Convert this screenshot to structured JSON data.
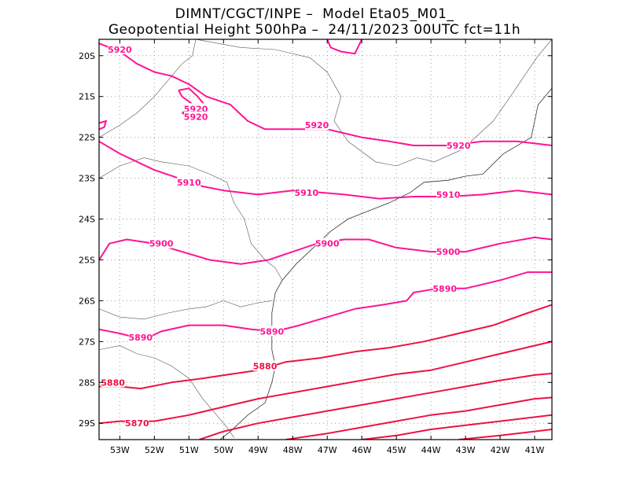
{
  "header": {
    "line1": "DIMNT/CGCT/INPE –  Model Eta05_M01_",
    "line2": "Geopotential Height 500hPa –  24/11/2023 00UTC fct=11h"
  },
  "map": {
    "lon_range": [
      -53.6,
      -40.5
    ],
    "lat_range": [
      -29.4,
      -19.6
    ],
    "x_ticks": [
      "53W",
      "52W",
      "51W",
      "50W",
      "49W",
      "48W",
      "47W",
      "46W",
      "45W",
      "44W",
      "43W",
      "42W",
      "41W"
    ],
    "x_tick_values": [
      -53,
      -52,
      -51,
      -50,
      -49,
      -48,
      -47,
      -46,
      -45,
      -44,
      -43,
      -42,
      -41
    ],
    "y_ticks": [
      "20S",
      "21S",
      "22S",
      "23S",
      "24S",
      "25S",
      "26S",
      "27S",
      "28S",
      "29S"
    ],
    "y_tick_values": [
      -20,
      -21,
      -22,
      -23,
      -24,
      -25,
      -26,
      -27,
      -28,
      -29
    ],
    "contour_color_high": "#ff1493",
    "contour_color_low": "#ee1144",
    "grid": "dotted"
  },
  "contours": [
    {
      "label": "5920",
      "label_positions": [
        [
          -53.0,
          -19.85
        ],
        [
          -50.8,
          -21.3
        ],
        [
          -50.8,
          -21.5
        ],
        [
          -47.3,
          -21.7
        ],
        [
          -43.2,
          -22.2
        ]
      ],
      "points": [
        [
          -53.6,
          -19.7
        ],
        [
          -53.0,
          -19.9
        ],
        [
          -52.5,
          -20.2
        ],
        [
          -52.0,
          -20.4
        ],
        [
          -51.5,
          -20.5
        ],
        [
          -51.0,
          -20.7
        ],
        [
          -50.5,
          -21.0
        ],
        [
          -49.8,
          -21.2
        ],
        [
          -49.3,
          -21.6
        ],
        [
          -48.8,
          -21.8
        ],
        [
          -48.0,
          -21.8
        ],
        [
          -47.5,
          -21.8
        ],
        [
          -47.0,
          -21.8
        ],
        [
          -46.5,
          -21.9
        ],
        [
          -46.0,
          -22.0
        ],
        [
          -45.2,
          -22.1
        ],
        [
          -44.5,
          -22.2
        ],
        [
          -43.5,
          -22.2
        ],
        [
          -42.5,
          -22.1
        ],
        [
          -41.5,
          -22.1
        ],
        [
          -40.5,
          -22.2
        ]
      ]
    },
    {
      "label": "5910",
      "label_positions": [
        [
          -51.0,
          -23.1
        ],
        [
          -47.6,
          -23.35
        ],
        [
          -43.5,
          -23.4
        ]
      ],
      "points": [
        [
          -53.6,
          -22.1
        ],
        [
          -53.0,
          -22.4
        ],
        [
          -52.5,
          -22.6
        ],
        [
          -52.0,
          -22.8
        ],
        [
          -51.3,
          -23.0
        ],
        [
          -50.6,
          -23.2
        ],
        [
          -50.0,
          -23.3
        ],
        [
          -49.0,
          -23.4
        ],
        [
          -48.0,
          -23.3
        ],
        [
          -47.2,
          -23.35
        ],
        [
          -46.5,
          -23.4
        ],
        [
          -45.5,
          -23.5
        ],
        [
          -44.5,
          -23.45
        ],
        [
          -43.5,
          -23.45
        ],
        [
          -42.5,
          -23.4
        ],
        [
          -41.5,
          -23.3
        ],
        [
          -40.5,
          -23.4
        ]
      ]
    },
    {
      "label": "5900",
      "label_positions": [
        [
          -51.8,
          -24.6
        ],
        [
          -47.0,
          -24.6
        ],
        [
          -43.5,
          -24.8
        ]
      ],
      "points": [
        [
          -53.6,
          -25.0
        ],
        [
          -53.3,
          -24.6
        ],
        [
          -52.8,
          -24.5
        ],
        [
          -52.0,
          -24.6
        ],
        [
          -51.2,
          -24.8
        ],
        [
          -50.4,
          -25.0
        ],
        [
          -49.5,
          -25.1
        ],
        [
          -48.7,
          -25.0
        ],
        [
          -48.0,
          -24.8
        ],
        [
          -47.3,
          -24.6
        ],
        [
          -46.5,
          -24.5
        ],
        [
          -45.8,
          -24.5
        ],
        [
          -45.0,
          -24.7
        ],
        [
          -44.0,
          -24.8
        ],
        [
          -43.0,
          -24.8
        ],
        [
          -42.0,
          -24.6
        ],
        [
          -41.0,
          -24.45
        ],
        [
          -40.5,
          -24.5
        ]
      ]
    },
    {
      "label": "5890",
      "label_positions": [
        [
          -52.4,
          -26.9
        ],
        [
          -48.6,
          -26.75
        ],
        [
          -43.6,
          -25.7
        ]
      ],
      "points": [
        [
          -53.6,
          -26.7
        ],
        [
          -53.0,
          -26.8
        ],
        [
          -52.3,
          -26.95
        ],
        [
          -51.8,
          -26.75
        ],
        [
          -51.0,
          -26.6
        ],
        [
          -50.0,
          -26.6
        ],
        [
          -49.2,
          -26.7
        ],
        [
          -48.5,
          -26.75
        ],
        [
          -47.8,
          -26.6
        ],
        [
          -47.0,
          -26.4
        ],
        [
          -46.2,
          -26.2
        ],
        [
          -45.4,
          -26.1
        ],
        [
          -44.7,
          -26.0
        ],
        [
          -44.5,
          -25.8
        ],
        [
          -43.8,
          -25.7
        ],
        [
          -43.0,
          -25.7
        ],
        [
          -42.0,
          -25.5
        ],
        [
          -41.2,
          -25.3
        ],
        [
          -40.5,
          -25.3
        ]
      ]
    },
    {
      "label": "5880",
      "label_positions": [
        [
          -53.2,
          -28.0
        ],
        [
          -48.8,
          -27.6
        ]
      ],
      "points": [
        [
          -53.6,
          -28.1
        ],
        [
          -53.0,
          -28.1
        ],
        [
          -52.4,
          -28.15
        ],
        [
          -51.5,
          -28.0
        ],
        [
          -50.6,
          -27.9
        ],
        [
          -49.8,
          -27.8
        ],
        [
          -49.0,
          -27.7
        ],
        [
          -48.2,
          -27.5
        ],
        [
          -47.2,
          -27.4
        ],
        [
          -46.2,
          -27.25
        ],
        [
          -45.2,
          -27.15
        ],
        [
          -44.2,
          -27.0
        ],
        [
          -43.2,
          -26.8
        ],
        [
          -42.2,
          -26.6
        ],
        [
          -41.2,
          -26.3
        ],
        [
          -40.5,
          -26.1
        ]
      ]
    },
    {
      "label": "5870",
      "label_positions": [
        [
          -52.5,
          -29.0
        ]
      ],
      "points": [
        [
          -53.6,
          -29.0
        ],
        [
          -53.0,
          -28.95
        ],
        [
          -52.0,
          -28.95
        ],
        [
          -51.0,
          -28.8
        ],
        [
          -50.0,
          -28.6
        ],
        [
          -49.0,
          -28.4
        ],
        [
          -48.0,
          -28.25
        ],
        [
          -47.0,
          -28.1
        ],
        [
          -46.0,
          -27.95
        ],
        [
          -45.0,
          -27.8
        ],
        [
          -44.0,
          -27.7
        ],
        [
          -43.0,
          -27.5
        ],
        [
          -42.0,
          -27.3
        ],
        [
          -41.0,
          -27.1
        ],
        [
          -40.5,
          -27.0
        ]
      ]
    },
    {
      "label": "",
      "label_positions": [],
      "points": [
        [
          -50.7,
          -29.4
        ],
        [
          -50.0,
          -29.2
        ],
        [
          -49.0,
          -29.0
        ],
        [
          -48.0,
          -28.85
        ],
        [
          -47.0,
          -28.7
        ],
        [
          -46.0,
          -28.55
        ],
        [
          -45.0,
          -28.4
        ],
        [
          -44.0,
          -28.25
        ],
        [
          -43.0,
          -28.1
        ],
        [
          -42.0,
          -27.95
        ],
        [
          -41.0,
          -27.82
        ],
        [
          -40.5,
          -27.78
        ]
      ]
    },
    {
      "label": "",
      "label_positions": [],
      "points": [
        [
          -48.2,
          -29.4
        ],
        [
          -47.0,
          -29.25
        ],
        [
          -46.0,
          -29.1
        ],
        [
          -45.0,
          -28.95
        ],
        [
          -44.0,
          -28.8
        ],
        [
          -43.0,
          -28.7
        ],
        [
          -42.0,
          -28.55
        ],
        [
          -41.0,
          -28.4
        ],
        [
          -40.5,
          -28.37
        ]
      ]
    },
    {
      "label": "",
      "label_positions": [],
      "points": [
        [
          -46.0,
          -29.4
        ],
        [
          -45.0,
          -29.3
        ],
        [
          -44.0,
          -29.15
        ],
        [
          -43.0,
          -29.05
        ],
        [
          -42.0,
          -28.95
        ],
        [
          -41.0,
          -28.85
        ],
        [
          -40.5,
          -28.8
        ]
      ]
    },
    {
      "label": "",
      "label_positions": [],
      "points": [
        [
          -43.2,
          -29.4
        ],
        [
          -42.0,
          -29.3
        ],
        [
          -41.0,
          -29.2
        ],
        [
          -40.5,
          -29.15
        ]
      ]
    }
  ],
  "small_features": [
    {
      "points": [
        [
          -53.6,
          -21.65
        ],
        [
          -53.4,
          -21.6
        ],
        [
          -53.45,
          -21.75
        ],
        [
          -53.6,
          -21.8
        ]
      ]
    },
    {
      "points": [
        [
          -51.3,
          -20.85
        ],
        [
          -51.0,
          -20.8
        ],
        [
          -50.75,
          -21.0
        ],
        [
          -50.55,
          -21.2
        ],
        [
          -50.8,
          -21.25
        ],
        [
          -51.2,
          -21.0
        ],
        [
          -51.3,
          -20.85
        ]
      ]
    },
    {
      "points": [
        [
          -51.2,
          -21.4
        ],
        [
          -50.9,
          -21.3
        ],
        [
          -50.7,
          -21.45
        ],
        [
          -50.95,
          -21.5
        ],
        [
          -51.2,
          -21.4
        ]
      ]
    },
    {
      "points": [
        [
          -47.0,
          -19.6
        ],
        [
          -46.9,
          -19.8
        ],
        [
          -46.6,
          -19.9
        ],
        [
          -46.2,
          -19.95
        ],
        [
          -46.0,
          -19.6
        ]
      ]
    }
  ],
  "boundaries": {
    "coast": [
      [
        -40.5,
        -20.8
      ],
      [
        -40.9,
        -21.2
      ],
      [
        -41.0,
        -21.6
      ],
      [
        -41.1,
        -22.0
      ],
      [
        -41.9,
        -22.4
      ],
      [
        -42.5,
        -22.9
      ],
      [
        -43.0,
        -22.95
      ],
      [
        -43.5,
        -23.05
      ],
      [
        -44.2,
        -23.1
      ],
      [
        -44.6,
        -23.35
      ],
      [
        -45.2,
        -23.6
      ],
      [
        -45.8,
        -23.8
      ],
      [
        -46.4,
        -24.0
      ],
      [
        -46.9,
        -24.3
      ],
      [
        -47.4,
        -24.7
      ],
      [
        -47.9,
        -25.1
      ],
      [
        -48.3,
        -25.5
      ],
      [
        -48.5,
        -25.8
      ],
      [
        -48.6,
        -26.3
      ],
      [
        -48.6,
        -26.8
      ],
      [
        -48.6,
        -27.2
      ],
      [
        -48.5,
        -27.6
      ],
      [
        -48.6,
        -28.0
      ],
      [
        -48.8,
        -28.5
      ],
      [
        -49.3,
        -28.8
      ],
      [
        -49.8,
        -29.2
      ],
      [
        -50.1,
        -29.4
      ]
    ],
    "states": [
      [
        [
          -53.6,
          -23.0
        ],
        [
          -53.0,
          -22.7
        ],
        [
          -52.3,
          -22.5
        ],
        [
          -51.8,
          -22.6
        ],
        [
          -51.0,
          -22.7
        ],
        [
          -50.4,
          -22.9
        ],
        [
          -49.9,
          -23.1
        ],
        [
          -49.7,
          -23.6
        ],
        [
          -49.4,
          -24.0
        ],
        [
          -49.2,
          -24.6
        ],
        [
          -48.8,
          -25.0
        ],
        [
          -48.5,
          -25.2
        ],
        [
          -48.3,
          -25.5
        ]
      ],
      [
        [
          -53.6,
          -26.2
        ],
        [
          -53.0,
          -26.4
        ],
        [
          -52.3,
          -26.45
        ],
        [
          -51.6,
          -26.3
        ],
        [
          -51.0,
          -26.2
        ],
        [
          -50.5,
          -26.15
        ],
        [
          -50.0,
          -26.0
        ],
        [
          -49.5,
          -26.15
        ],
        [
          -49.0,
          -26.05
        ],
        [
          -48.6,
          -26.0
        ]
      ],
      [
        [
          -53.6,
          -27.2
        ],
        [
          -53.0,
          -27.1
        ],
        [
          -52.5,
          -27.3
        ],
        [
          -52.0,
          -27.4
        ],
        [
          -51.5,
          -27.6
        ],
        [
          -51.0,
          -27.9
        ],
        [
          -50.6,
          -28.4
        ],
        [
          -50.2,
          -28.8
        ],
        [
          -49.9,
          -29.1
        ],
        [
          -49.7,
          -29.35
        ]
      ],
      [
        [
          -50.8,
          -19.6
        ],
        [
          -50.9,
          -20.0
        ],
        [
          -51.2,
          -20.2
        ],
        [
          -51.6,
          -20.6
        ],
        [
          -52.0,
          -21.0
        ],
        [
          -52.5,
          -21.4
        ],
        [
          -53.0,
          -21.7
        ],
        [
          -53.6,
          -22.0
        ]
      ],
      [
        [
          -50.8,
          -19.6
        ],
        [
          -49.5,
          -19.8
        ],
        [
          -48.5,
          -19.85
        ],
        [
          -47.5,
          -20.05
        ],
        [
          -47.0,
          -20.4
        ],
        [
          -46.6,
          -21.0
        ],
        [
          -46.8,
          -21.6
        ],
        [
          -46.4,
          -22.1
        ],
        [
          -45.6,
          -22.6
        ],
        [
          -45.0,
          -22.7
        ],
        [
          -44.4,
          -22.5
        ],
        [
          -43.9,
          -22.6
        ],
        [
          -43.1,
          -22.3
        ],
        [
          -42.2,
          -21.6
        ],
        [
          -41.7,
          -21.0
        ],
        [
          -41.3,
          -20.5
        ],
        [
          -40.9,
          -20.0
        ],
        [
          -40.5,
          -19.6
        ]
      ]
    ]
  }
}
